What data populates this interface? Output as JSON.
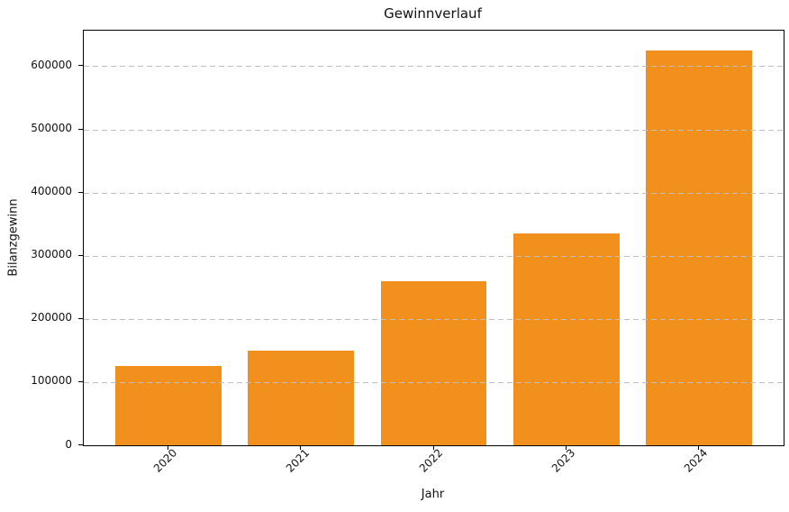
{
  "figure": {
    "background": "#ffffff",
    "axis_color": "#000000",
    "text_color": "#111111"
  },
  "chart_data": {
    "type": "bar",
    "title": "Gewinnverlauf",
    "xlabel": "Jahr",
    "ylabel": "Bilanzgewinn",
    "categories": [
      "2020",
      "2021",
      "2022",
      "2023",
      "2024"
    ],
    "values": [
      125000,
      150000,
      260000,
      335000,
      625000
    ],
    "ytick_labels": [
      "0",
      "100000",
      "200000",
      "300000",
      "400000",
      "500000",
      "600000"
    ],
    "yticks": [
      0,
      100000,
      200000,
      300000,
      400000,
      500000,
      600000
    ],
    "ylim": [
      0,
      656250
    ],
    "bar_color": "#f1901d",
    "grid": {
      "axis": "y",
      "style": "dashed",
      "color": "#c0c0c0",
      "drawn_above_bars": true
    },
    "xtick_rotation_deg": 45,
    "legend": null
  }
}
